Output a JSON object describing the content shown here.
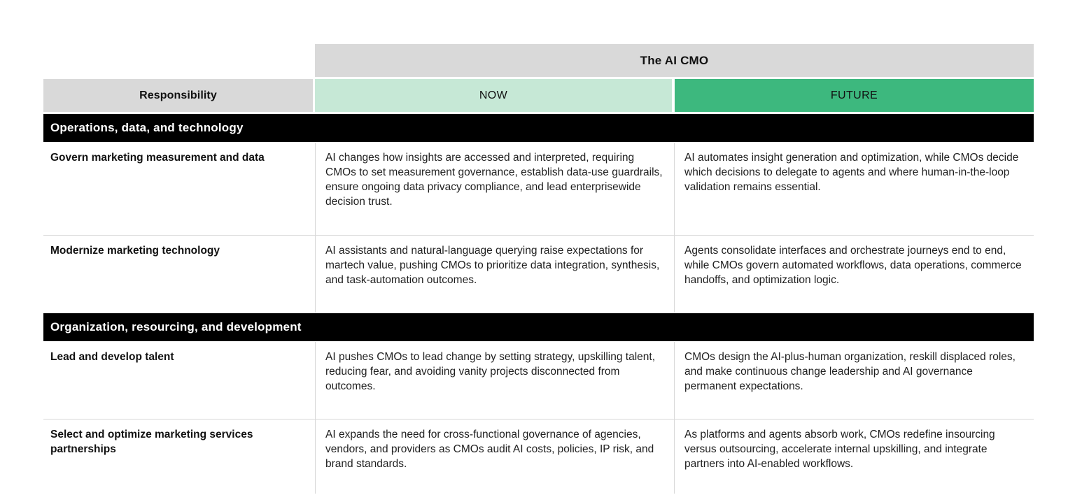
{
  "table": {
    "spanner_title": "The AI CMO",
    "columns": {
      "responsibility": "Responsibility",
      "now": "NOW",
      "future": "FUTURE"
    },
    "colors": {
      "header_gray": "#d9d9d9",
      "now_bg": "#c6e8d6",
      "future_bg": "#3db87e",
      "section_bar_bg": "#000000",
      "section_bar_text": "#ffffff",
      "divider": "#d8d8d8",
      "body_text": "#1f1f1f"
    },
    "sections": [
      {
        "title": "Operations, data, and technology",
        "rows": [
          {
            "responsibility": "Govern marketing measurement and data",
            "now": "AI changes how insights are accessed and interpreted, requiring CMOs to set measurement governance, establish data-use guardrails, ensure ongoing data privacy compliance, and lead enterprisewide decision trust.",
            "future": "AI automates insight generation and optimization, while CMOs decide which decisions to delegate to agents and where human-in-the-loop validation remains essential."
          },
          {
            "responsibility": "Modernize marketing technology",
            "now": "AI assistants and natural-language querying raise expectations for martech value, pushing CMOs to prioritize data integration, synthesis, and task-automation outcomes.",
            "future": "Agents consolidate interfaces and orchestrate journeys end to end, while CMOs govern automated workflows, data operations, commerce handoffs, and optimization logic."
          }
        ]
      },
      {
        "title": "Organization, resourcing, and development",
        "rows": [
          {
            "responsibility": "Lead and develop talent",
            "now": "AI pushes CMOs to lead change by setting strategy, upskilling talent, reducing fear, and avoiding vanity projects disconnected from outcomes.",
            "future": "CMOs design the AI-plus-human organization, reskill displaced roles, and make continuous change leadership and AI governance permanent expectations."
          },
          {
            "responsibility": "Select and optimize marketing services partnerships",
            "now": "AI expands the need for cross-functional governance of agencies, vendors, and providers as CMOs audit AI costs, policies, IP risk, and brand standards.",
            "future": "As platforms and agents absorb work, CMOs redefine insourcing versus outsourcing, accelerate internal upskilling, and integrate partners into AI-enabled workflows."
          }
        ]
      }
    ]
  }
}
